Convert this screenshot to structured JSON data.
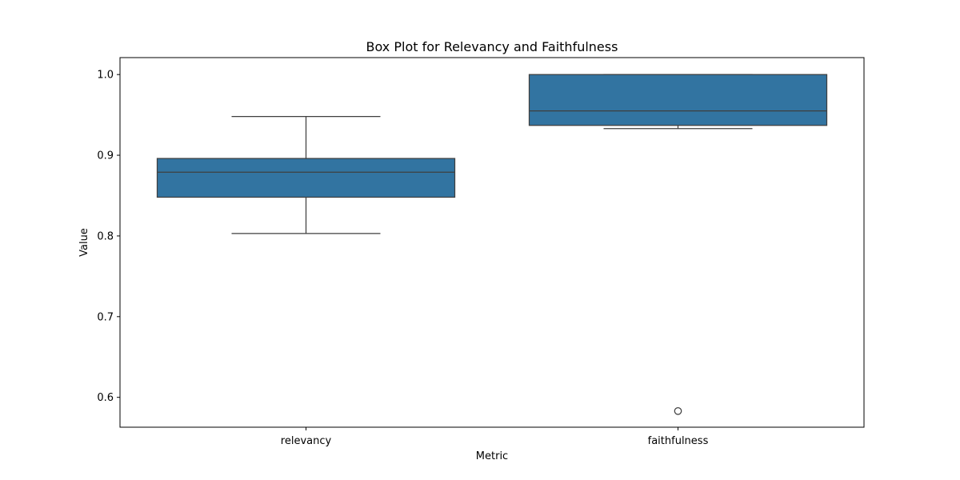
{
  "chart_data": {
    "type": "box",
    "title": "Box Plot for Relevancy and Faithfulness",
    "xlabel": "Metric",
    "ylabel": "Value",
    "ylim": [
      0.563,
      1.021
    ],
    "yticks": [
      0.6,
      0.7,
      0.8,
      0.9,
      1.0
    ],
    "ytick_labels": [
      "0.6",
      "0.7",
      "0.8",
      "0.9",
      "1.0"
    ],
    "grid": false,
    "box_color": "#3274a1",
    "edge_color": "#3f3f3f",
    "categories": [
      "relevancy",
      "faithfulness"
    ],
    "boxes": [
      {
        "category": "relevancy",
        "whisker_low": 0.803,
        "q1": 0.848,
        "median": 0.879,
        "q3": 0.896,
        "whisker_high": 0.948,
        "outliers": []
      },
      {
        "category": "faithfulness",
        "whisker_low": 0.933,
        "q1": 0.937,
        "median": 0.955,
        "q3": 1.0,
        "whisker_high": 1.0,
        "outliers": [
          0.583
        ]
      }
    ]
  }
}
